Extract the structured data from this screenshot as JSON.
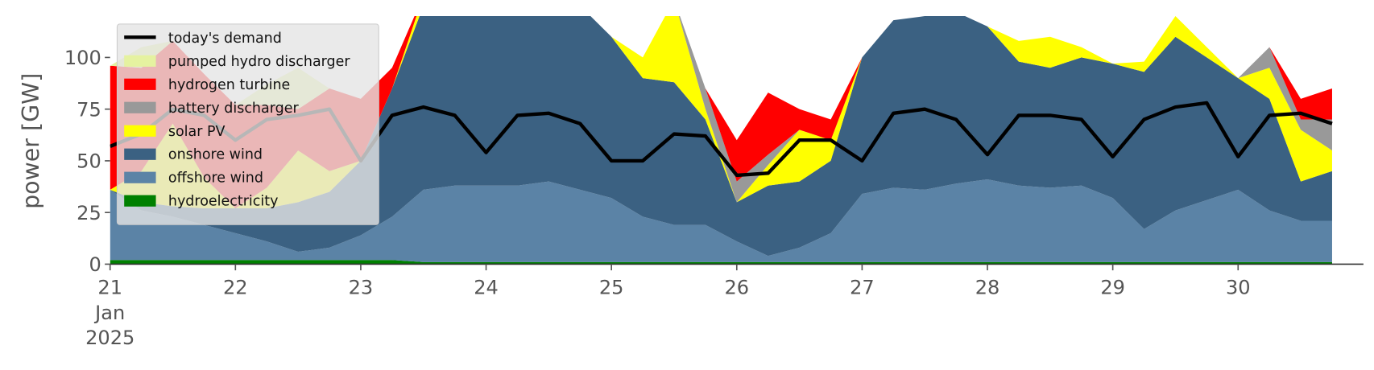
{
  "chart_data": {
    "type": "stacked-area",
    "y_label": "power [GW]",
    "x": [
      21,
      21.25,
      21.5,
      21.75,
      22,
      22.25,
      22.5,
      22.75,
      23,
      23.25,
      23.5,
      23.75,
      24,
      24.25,
      24.5,
      24.75,
      25,
      25.25,
      25.5,
      25.75,
      26,
      26.25,
      26.5,
      26.75,
      27,
      27.25,
      27.5,
      27.75,
      28,
      28.25,
      28.5,
      28.75,
      29,
      29.25,
      29.5,
      29.75,
      30,
      30.25,
      30.5,
      30.75
    ],
    "xlim": [
      21,
      31
    ],
    "xticks": [
      {
        "value": 21,
        "label": "21\nJan\n2025"
      },
      22,
      23,
      24,
      25,
      26,
      27,
      28,
      29,
      30
    ],
    "ylim": [
      0,
      120
    ],
    "yticks": [
      0,
      25,
      50,
      75,
      100
    ],
    "legend": "upper left",
    "series": [
      {
        "name": "hydroelectricity",
        "color": "#008000",
        "values": [
          2,
          2,
          2,
          2,
          2,
          2,
          2,
          2,
          2,
          2,
          1,
          1,
          1,
          1,
          1,
          1,
          1,
          1,
          1,
          1,
          1,
          1,
          1,
          1,
          1,
          1,
          1,
          1,
          1,
          1,
          1,
          1,
          1,
          1,
          1,
          1,
          1,
          1,
          1,
          1
        ]
      },
      {
        "name": "offshore wind",
        "color": "#5b83a6",
        "values": [
          34,
          24,
          21,
          17,
          13,
          9,
          4,
          6,
          12,
          21,
          35,
          37,
          37,
          37,
          39,
          35,
          31,
          22,
          18,
          18,
          10,
          3,
          7,
          14,
          33,
          36,
          35,
          38,
          40,
          37,
          36,
          37,
          31,
          16,
          25,
          30,
          35,
          25,
          20,
          20
        ]
      },
      {
        "name": "onshore wind",
        "color": "#3b6182",
        "values": [
          0,
          4,
          5,
          8,
          12,
          16,
          24,
          27,
          36,
          62,
          89,
          92,
          92,
          92,
          90,
          89,
          78,
          67,
          69,
          51,
          19,
          34,
          32,
          35,
          66,
          81,
          84,
          83,
          74,
          60,
          58,
          62,
          65,
          76,
          84,
          69,
          54,
          54,
          19,
          24
        ]
      },
      {
        "name": "solar PV",
        "color": "#ffff00",
        "values": [
          0,
          15,
          40,
          15,
          0,
          10,
          25,
          10,
          0,
          0,
          5,
          0,
          0,
          0,
          0,
          0,
          0,
          10,
          40,
          5,
          0,
          10,
          25,
          10,
          0,
          0,
          0,
          0,
          0,
          10,
          15,
          5,
          0,
          5,
          10,
          5,
          0,
          15,
          25,
          10
        ]
      },
      {
        "name": "battery discharger",
        "color": "#999999",
        "values": [
          0,
          0,
          0,
          0,
          0,
          0,
          0,
          0,
          0,
          0,
          0,
          0,
          0,
          0,
          0,
          0,
          0,
          0,
          0,
          10,
          10,
          5,
          0,
          0,
          0,
          0,
          0,
          0,
          0,
          0,
          0,
          0,
          0,
          0,
          0,
          0,
          0,
          10,
          5,
          15
        ]
      },
      {
        "name": "hydrogen turbine",
        "color": "#ff0000",
        "values": [
          60,
          50,
          40,
          50,
          50,
          40,
          20,
          40,
          30,
          10,
          0,
          0,
          0,
          0,
          0,
          0,
          0,
          0,
          0,
          0,
          20,
          30,
          10,
          10,
          0,
          0,
          0,
          0,
          0,
          0,
          0,
          0,
          0,
          0,
          0,
          0,
          0,
          0,
          10,
          15
        ]
      },
      {
        "name": "pumped hydro discharger",
        "color": "#e5f2a0",
        "values": [
          0,
          10,
          0,
          0,
          0,
          10,
          20,
          0,
          0,
          0,
          0,
          0,
          0,
          0,
          0,
          0,
          0,
          0,
          0,
          0,
          0,
          0,
          0,
          0,
          0,
          0,
          0,
          0,
          0,
          0,
          0,
          0,
          0,
          0,
          0,
          0,
          0,
          0,
          0,
          0
        ]
      }
    ],
    "demand": {
      "name": "today's demand",
      "color": "#000000",
      "values": [
        57,
        63,
        75,
        72,
        60,
        70,
        72,
        75,
        50,
        72,
        76,
        72,
        54,
        72,
        73,
        68,
        50,
        50,
        63,
        62,
        43,
        44,
        60,
        60,
        50,
        73,
        75,
        70,
        53,
        72,
        72,
        70,
        52,
        70,
        76,
        78,
        52,
        72,
        73,
        68
      ]
    }
  }
}
